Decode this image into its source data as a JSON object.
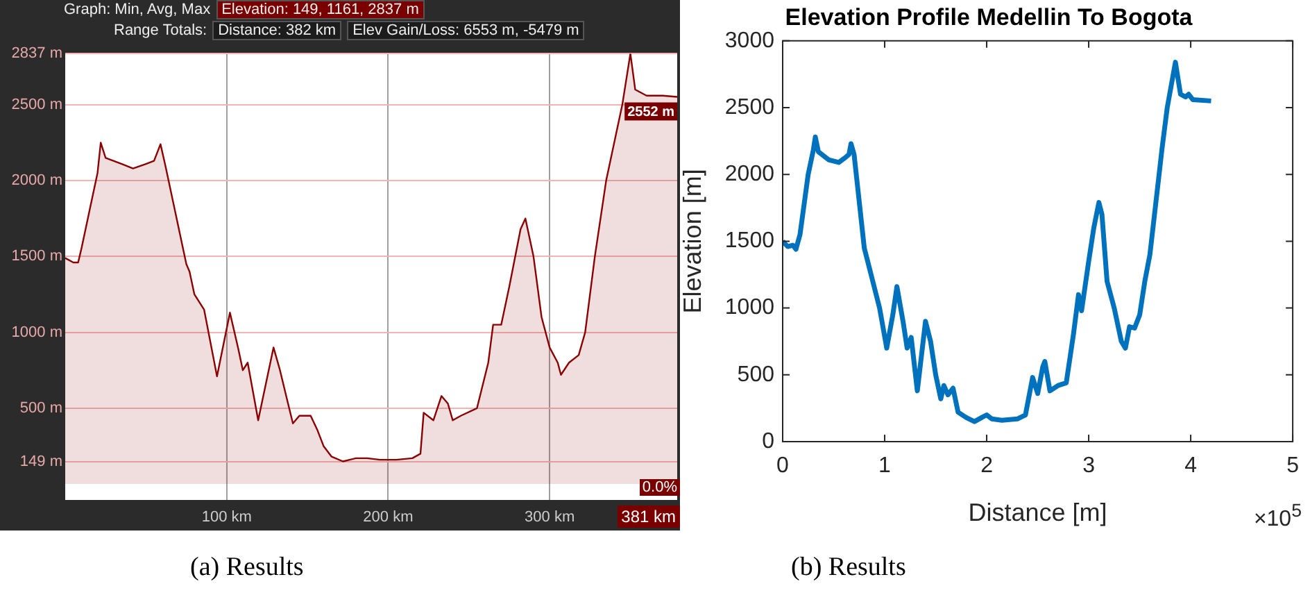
{
  "chart_data": [
    {
      "type": "area",
      "subtitle": "(a) Results",
      "annotations": [
        "Graph: Min, Avg, Max",
        "Elevation: 149, 1161, 2837 m",
        "Range Totals:",
        "Distance: 382 km",
        "Elev Gain/Loss: 6553 m, -5479 m",
        "0.0%",
        "381 km",
        {
          "text": "2552 m",
          "x": 379,
          "y": 2552
        }
      ],
      "x": [
        0,
        5,
        8,
        10,
        15,
        20,
        22,
        25,
        35,
        42,
        50,
        55,
        59,
        62,
        68,
        75,
        77,
        80,
        86,
        94,
        102,
        107,
        110,
        113,
        119.5,
        129,
        133,
        138,
        141,
        145,
        152,
        156,
        160,
        165,
        172,
        180,
        187,
        195,
        205,
        215,
        220,
        222,
        228,
        233,
        237,
        240,
        245,
        255,
        262,
        265,
        270,
        275,
        282,
        285,
        290,
        295,
        300,
        305,
        307,
        312,
        318,
        322,
        328,
        335,
        345,
        350,
        353,
        360,
        370,
        379
      ],
      "series": [
        {
          "color": "#8b0000",
          "values": [
            1490,
            1460,
            1460,
            1550,
            1800,
            2050,
            2250,
            2150,
            2110,
            2080,
            2110,
            2130,
            2240,
            2100,
            1800,
            1450,
            1400,
            1250,
            1150,
            710,
            1130,
            900,
            750,
            800,
            420,
            900,
            750,
            530,
            400,
            450,
            450,
            360,
            250,
            180,
            149,
            170,
            170,
            160,
            160,
            170,
            200,
            470,
            420,
            580,
            530,
            420,
            450,
            500,
            800,
            1050,
            1050,
            1300,
            1680,
            1750,
            1500,
            1100,
            900,
            800,
            720,
            800,
            850,
            1000,
            1500,
            2000,
            2500,
            2837,
            2600,
            2560,
            2560,
            2552
          ]
        }
      ],
      "xlim": [
        0,
        379
      ],
      "xticks": [
        {
          "value": 100,
          "label": "100 km"
        },
        {
          "value": 200,
          "label": "200 km"
        },
        {
          "value": 300,
          "label": "300 km"
        }
      ],
      "ylim": [
        -105,
        2837
      ],
      "yticks": [
        {
          "value": 149,
          "label": "149 m"
        },
        {
          "value": 500,
          "label": "500 m"
        },
        {
          "value": 1000,
          "label": "1000 m"
        },
        {
          "value": 1500,
          "label": "1500 m"
        },
        {
          "value": 2000,
          "label": "2000 m"
        },
        {
          "value": 2500,
          "label": "2500 m"
        },
        {
          "value": 2837,
          "label": "2837 m"
        }
      ],
      "grid": true
    },
    {
      "type": "line",
      "title": "Elevation Profile Medellin To Bogota",
      "subtitle": "(b) Results",
      "xlabel": "Distance [m]",
      "ylabel": "Elevation [m]",
      "annotations": [
        "×10$^{5}$"
      ],
      "x": [
        0,
        0.05,
        0.1,
        0.13,
        0.17,
        0.25,
        0.3,
        0.32,
        0.35,
        0.45,
        0.55,
        0.62,
        0.65,
        0.67,
        0.7,
        0.75,
        0.8,
        0.85,
        0.9,
        0.95,
        1.02,
        1.08,
        1.12,
        1.18,
        1.22,
        1.26,
        1.32,
        1.4,
        1.45,
        1.5,
        1.55,
        1.58,
        1.62,
        1.67,
        1.72,
        1.8,
        1.88,
        1.95,
        2,
        2.05,
        2.15,
        2.3,
        2.38,
        2.45,
        2.5,
        2.55,
        2.57,
        2.62,
        2.7,
        2.78,
        2.85,
        2.9,
        2.93,
        3,
        3.05,
        3.1,
        3.13,
        3.18,
        3.25,
        3.32,
        3.36,
        3.4,
        3.45,
        3.5,
        3.55,
        3.6,
        3.66,
        3.72,
        3.77,
        3.85,
        3.9,
        3.95,
        3.98,
        4.02,
        4.2
      ],
      "series": [
        {
          "color": "#0072bd",
          "values": [
            1500,
            1460,
            1470,
            1440,
            1550,
            2000,
            2180,
            2280,
            2170,
            2110,
            2090,
            2130,
            2150,
            2230,
            2150,
            1800,
            1450,
            1300,
            1150,
            1000,
            700,
            950,
            1160,
            900,
            700,
            780,
            380,
            900,
            750,
            500,
            320,
            420,
            350,
            400,
            220,
            180,
            150,
            180,
            200,
            170,
            160,
            170,
            200,
            480,
            360,
            560,
            600,
            380,
            420,
            440,
            800,
            1100,
            980,
            1350,
            1600,
            1790,
            1700,
            1200,
            1000,
            750,
            700,
            860,
            850,
            950,
            1200,
            1400,
            1800,
            2200,
            2500,
            2840,
            2600,
            2580,
            2600,
            2560,
            2550
          ]
        }
      ],
      "xlim": [
        0,
        5
      ],
      "xticks": [
        0,
        1,
        2,
        3,
        4,
        5
      ],
      "ylim": [
        0,
        3000
      ],
      "yticks": [
        0,
        500,
        1000,
        1500,
        2000,
        2500,
        3000
      ]
    }
  ]
}
